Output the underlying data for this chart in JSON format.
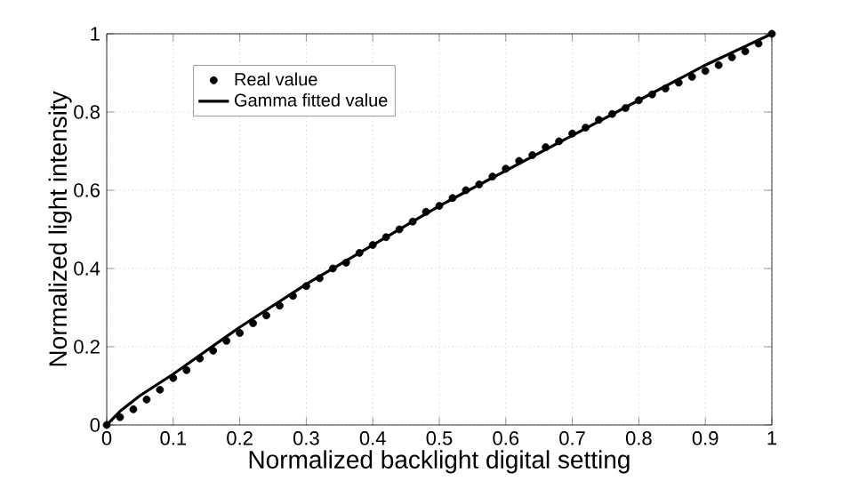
{
  "chart_data": {
    "type": "scatter",
    "xlabel": "Normalized backlight digital setting",
    "ylabel": "Normalized light intensity",
    "xlim": [
      0,
      1
    ],
    "ylim": [
      0,
      1
    ],
    "xticks": [
      0,
      0.1,
      0.2,
      0.3,
      0.4,
      0.5,
      0.6,
      0.7,
      0.8,
      0.9,
      1
    ],
    "yticks": [
      0,
      0.2,
      0.4,
      0.6,
      0.8,
      1
    ],
    "grid": true,
    "legend": "top left",
    "series": [
      {
        "name": "Real value",
        "marker": "circle",
        "color": "#000000",
        "x": [
          0,
          0.02,
          0.04,
          0.06,
          0.08,
          0.1,
          0.12,
          0.14,
          0.16,
          0.18,
          0.2,
          0.22,
          0.24,
          0.26,
          0.28,
          0.3,
          0.32,
          0.34,
          0.36,
          0.38,
          0.4,
          0.42,
          0.44,
          0.46,
          0.48,
          0.5,
          0.52,
          0.54,
          0.56,
          0.58,
          0.6,
          0.62,
          0.64,
          0.66,
          0.68,
          0.7,
          0.72,
          0.74,
          0.76,
          0.78,
          0.8,
          0.82,
          0.84,
          0.86,
          0.88,
          0.9,
          0.92,
          0.94,
          0.96,
          0.98,
          1
        ],
        "values": [
          0,
          0.02,
          0.04,
          0.065,
          0.09,
          0.12,
          0.14,
          0.17,
          0.19,
          0.215,
          0.235,
          0.26,
          0.28,
          0.305,
          0.33,
          0.355,
          0.375,
          0.4,
          0.415,
          0.44,
          0.46,
          0.48,
          0.5,
          0.52,
          0.545,
          0.56,
          0.58,
          0.6,
          0.615,
          0.635,
          0.655,
          0.675,
          0.69,
          0.71,
          0.725,
          0.745,
          0.76,
          0.78,
          0.795,
          0.81,
          0.83,
          0.845,
          0.86,
          0.875,
          0.89,
          0.905,
          0.92,
          0.94,
          0.955,
          0.975,
          1
        ]
      },
      {
        "name": "Gamma fitted value",
        "type": "line",
        "marker": "none",
        "line_style": "solid",
        "color": "#000000",
        "x": [
          0,
          0.02,
          0.05,
          0.1,
          0.2,
          0.3,
          0.4,
          0.5,
          0.6,
          0.7,
          0.8,
          0.9,
          1
        ],
        "values": [
          0,
          0.035,
          0.075,
          0.13,
          0.25,
          0.36,
          0.46,
          0.56,
          0.65,
          0.74,
          0.83,
          0.92,
          1
        ]
      }
    ]
  }
}
